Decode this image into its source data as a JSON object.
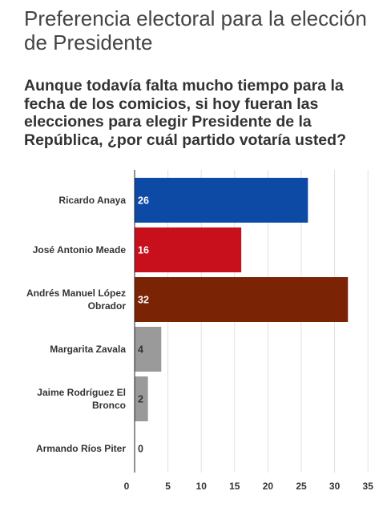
{
  "title": "Preferencia electoral para la elección de Presidente",
  "subtitle": "Aunque todavía falta mucho tiempo para la fecha de los comicios, si hoy fueran las elecciones para elegir Presidente de la República, ¿por cuál partido votaría usted?",
  "colors": {
    "gridline": "#e0e0e0",
    "axis": "#222222",
    "category_text": "#333333",
    "label_dark": "#333333",
    "label_light": "#ffffff"
  },
  "chart_data": {
    "type": "bar",
    "orientation": "horizontal",
    "categories": [
      "Ricardo Anaya",
      "José Antonio Meade",
      "Andrés Manuel López Obrador",
      "Margarita Zavala",
      "Jaime Rodríguez El Bronco",
      "Armando Ríos Piter"
    ],
    "category_lines": [
      [
        "Ricardo Anaya"
      ],
      [
        "José Antonio Meade"
      ],
      [
        "Andrés Manuel López",
        "Obrador"
      ],
      [
        "Margarita Zavala"
      ],
      [
        "Jaime Rodríguez El",
        "Bronco"
      ],
      [
        "Armando Ríos Piter"
      ]
    ],
    "values": [
      26,
      16,
      32,
      4,
      2,
      0
    ],
    "bar_colors": [
      "#0d4aa6",
      "#c8101c",
      "#7b2305",
      "#9a9a9a",
      "#9a9a9a",
      "#9a9a9a"
    ],
    "xlim": [
      0,
      35
    ],
    "xticks": [
      0,
      5,
      10,
      15,
      20,
      25,
      30,
      35
    ],
    "grid": true,
    "legend": "none"
  }
}
